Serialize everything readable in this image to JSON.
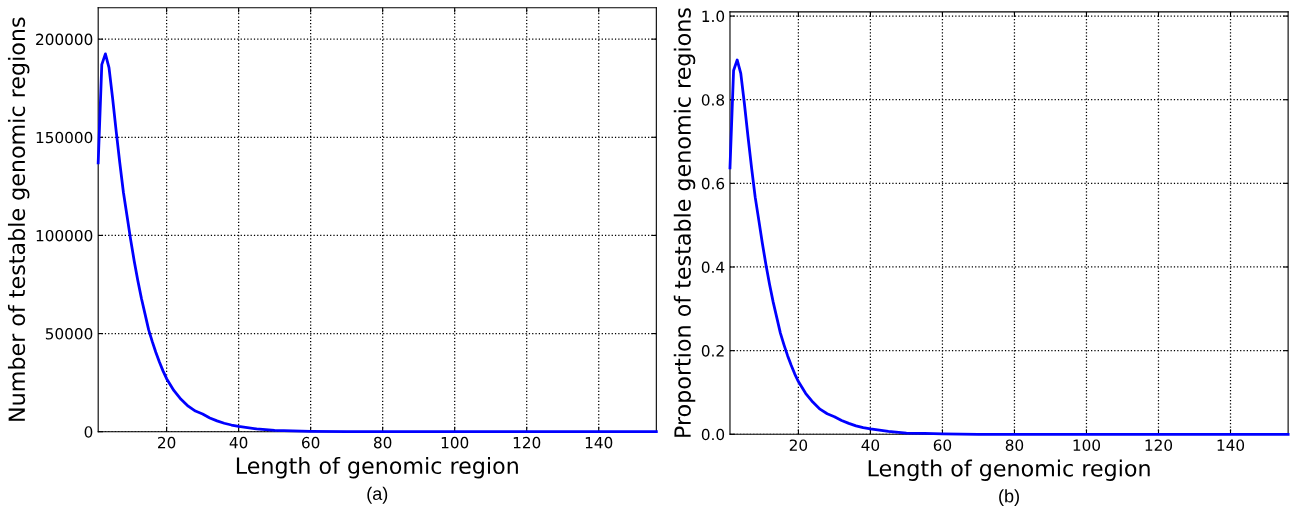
{
  "chart_data": [
    {
      "type": "line",
      "xlabel": "Length of genomic region",
      "ylabel": "Number of testable genomic regions",
      "annotations": [
        "(a)"
      ],
      "grid": true,
      "marker": "none",
      "line_style": "solid",
      "x": [
        1,
        2,
        3,
        4,
        5,
        6,
        7,
        8,
        9,
        10,
        11,
        12,
        13,
        14,
        15,
        16,
        17,
        18,
        19,
        20,
        22,
        24,
        26,
        28,
        30,
        32,
        34,
        36,
        38,
        40,
        45,
        50,
        55,
        60,
        70,
        80,
        100,
        120,
        156
      ],
      "series": [
        {
          "color": "#0000ff",
          "values": [
            137000,
            187000,
            192500,
            185500,
            170000,
            153000,
            137000,
            122000,
            110000,
            98000,
            87000,
            77000,
            68000,
            60000,
            52000,
            46000,
            40500,
            35500,
            31000,
            27000,
            21000,
            16500,
            13000,
            10500,
            9000,
            7000,
            5500,
            4300,
            3400,
            2700,
            1400,
            700,
            400,
            200,
            0,
            0,
            0,
            0,
            0
          ]
        }
      ],
      "xlim": [
        1,
        156
      ],
      "xticks": [
        20,
        40,
        60,
        80,
        100,
        120,
        140
      ],
      "ylim": [
        0,
        216000
      ],
      "yticks": [
        0,
        50000,
        100000,
        150000,
        200000
      ]
    },
    {
      "type": "line",
      "xlabel": "Length of genomic region",
      "ylabel": "Proportion of testable genomic regions",
      "annotations": [
        "(b)"
      ],
      "grid": true,
      "marker": "none",
      "line_style": "solid",
      "x": [
        1,
        2,
        3,
        4,
        5,
        6,
        7,
        8,
        9,
        10,
        11,
        12,
        13,
        14,
        15,
        16,
        17,
        18,
        19,
        20,
        22,
        24,
        26,
        28,
        30,
        32,
        34,
        36,
        38,
        40,
        45,
        50,
        55,
        60,
        70,
        80,
        100,
        120,
        156
      ],
      "series": [
        {
          "color": "#0000ff",
          "values": [
            0.637,
            0.87,
            0.895,
            0.863,
            0.791,
            0.712,
            0.637,
            0.567,
            0.512,
            0.456,
            0.405,
            0.358,
            0.316,
            0.279,
            0.242,
            0.214,
            0.188,
            0.165,
            0.144,
            0.126,
            0.098,
            0.077,
            0.06,
            0.049,
            0.042,
            0.033,
            0.026,
            0.02,
            0.016,
            0.013,
            0.007,
            0.003,
            0.002,
            0.001,
            0,
            0,
            0,
            0,
            0
          ]
        }
      ],
      "xlim": [
        1,
        156
      ],
      "xticks": [
        20,
        40,
        60,
        80,
        100,
        120,
        140
      ],
      "ylim": [
        0,
        1.01
      ],
      "yticks": [
        {
          "value": 0,
          "label": "0.0"
        },
        {
          "value": 0.2,
          "label": "0.2"
        },
        {
          "value": 0.4,
          "label": "0.4"
        },
        {
          "value": 0.6,
          "label": "0.6"
        },
        {
          "value": 0.8,
          "label": "0.8"
        },
        {
          "value": 1.0,
          "label": "1.0"
        }
      ]
    }
  ]
}
